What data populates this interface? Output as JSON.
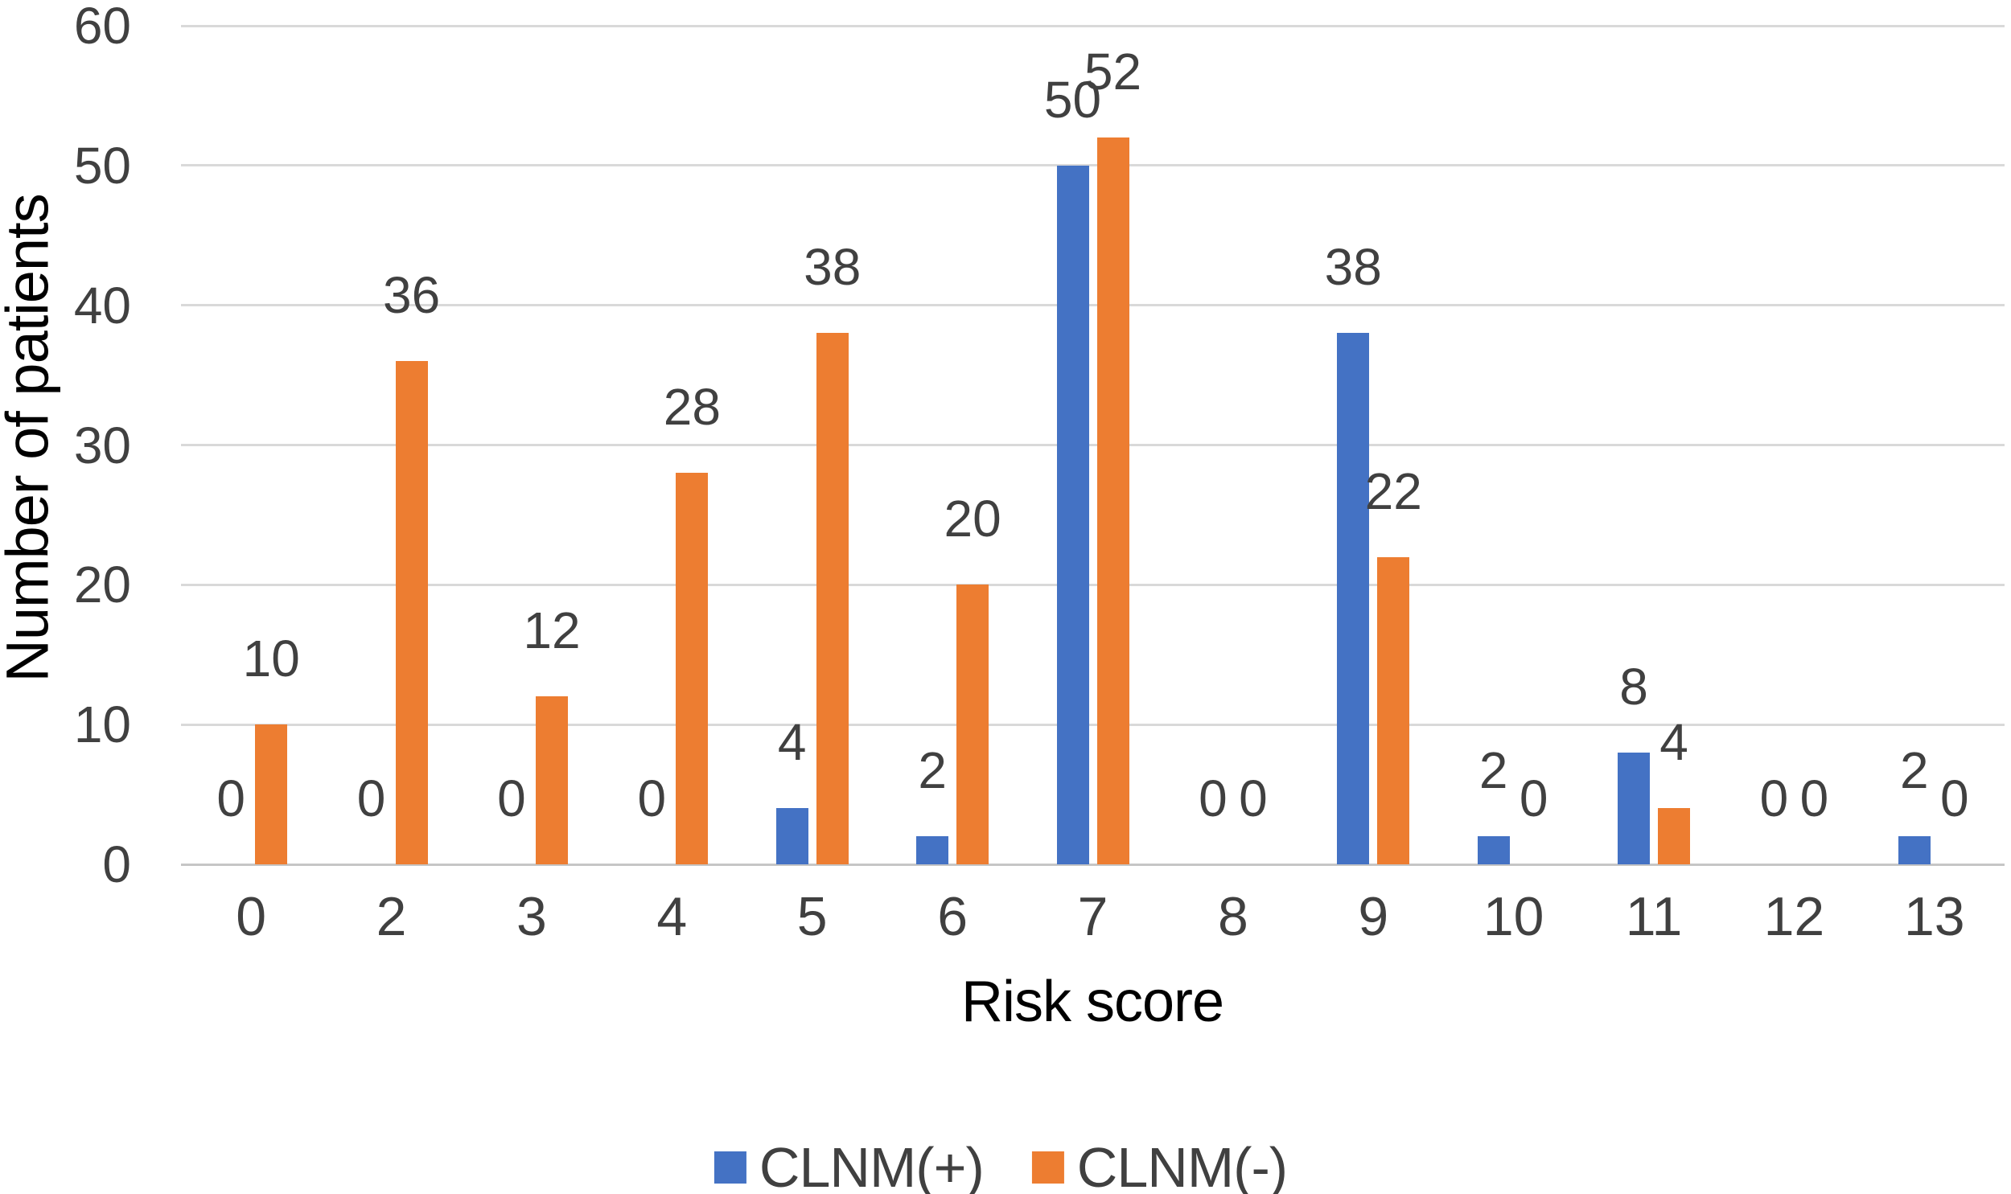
{
  "chart_data": {
    "type": "bar",
    "title": "",
    "xlabel": "Risk score",
    "ylabel": "Number of patients",
    "categories": [
      "0",
      "2",
      "3",
      "4",
      "5",
      "6",
      "7",
      "8",
      "9",
      "10",
      "11",
      "12",
      "13"
    ],
    "series": [
      {
        "name": "CLNM(+)",
        "color": "#4472C4",
        "values": [
          0,
          0,
          0,
          0,
          4,
          2,
          50,
          0,
          38,
          2,
          8,
          0,
          2
        ]
      },
      {
        "name": "CLNM(-)",
        "color": "#ED7D31",
        "values": [
          10,
          36,
          12,
          28,
          38,
          20,
          52,
          0,
          22,
          0,
          4,
          0,
          0
        ]
      }
    ],
    "ylim": [
      0,
      60
    ],
    "yticks": [
      0,
      10,
      20,
      30,
      40,
      50,
      60
    ],
    "grid": true,
    "data_labels": true,
    "legend_position": "bottom",
    "grid_color": "#D9D9D9",
    "axis_line_color": "#C6C6C6",
    "text_color": "#404040"
  }
}
